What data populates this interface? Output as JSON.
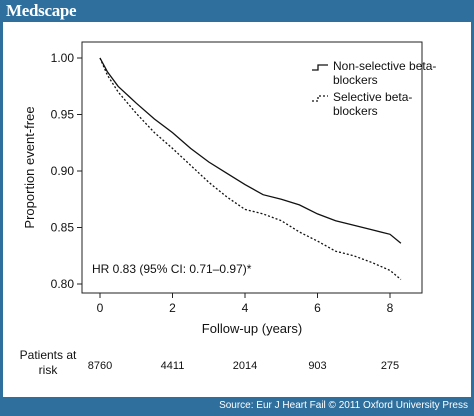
{
  "header": {
    "logo": "Medscape"
  },
  "footer": {
    "source": "Source: Eur J Heart Fail © 2011 Oxford University Press"
  },
  "chart_data": {
    "type": "line",
    "xlabel": "Follow-up (years)",
    "ylabel": "Proportion event-free",
    "xlim": [
      0,
      8.4
    ],
    "ylim": [
      0.8,
      1.0
    ],
    "x_ticks": [
      "0",
      "2",
      "4",
      "6",
      "8"
    ],
    "y_ticks": [
      "0.80",
      "0.85",
      "0.90",
      "0.95",
      "1.00"
    ],
    "grid": false,
    "legend_position": "top-right",
    "annotation": "HR 0.83 (95% CI: 0.71–0.97)*",
    "series": [
      {
        "name": "Non-selective beta-blockers",
        "style": "solid",
        "color": "#111111",
        "x": [
          0,
          0.2,
          0.5,
          1.0,
          1.5,
          2.0,
          2.5,
          3.0,
          3.5,
          4.0,
          4.5,
          5.0,
          5.5,
          6.0,
          6.5,
          7.0,
          7.5,
          8.0,
          8.3
        ],
        "y": [
          1.0,
          0.988,
          0.975,
          0.96,
          0.946,
          0.934,
          0.92,
          0.908,
          0.898,
          0.888,
          0.879,
          0.875,
          0.87,
          0.862,
          0.856,
          0.852,
          0.848,
          0.844,
          0.836
        ]
      },
      {
        "name": "Selective beta-blockers",
        "style": "dotted",
        "color": "#111111",
        "x": [
          0,
          0.2,
          0.5,
          1.0,
          1.5,
          2.0,
          2.5,
          3.0,
          3.5,
          4.0,
          4.5,
          5.0,
          5.5,
          6.0,
          6.5,
          7.0,
          7.5,
          8.0,
          8.3
        ],
        "y": [
          1.0,
          0.985,
          0.97,
          0.951,
          0.934,
          0.92,
          0.905,
          0.89,
          0.877,
          0.866,
          0.862,
          0.856,
          0.846,
          0.838,
          0.829,
          0.825,
          0.819,
          0.812,
          0.804
        ]
      }
    ],
    "risk_table": {
      "label": "Patients at risk",
      "label_line1": "Patients at",
      "label_line2": "risk",
      "values": [
        "8760",
        "4411",
        "2014",
        "903",
        "275"
      ],
      "years": [
        0,
        2,
        4,
        6,
        8
      ]
    }
  }
}
